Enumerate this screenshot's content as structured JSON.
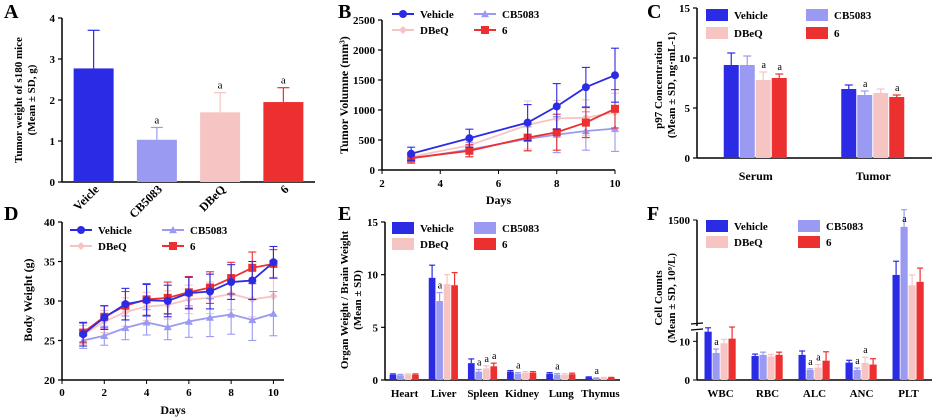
{
  "colors": {
    "vehicle": "#2b2be6",
    "cb5083": "#9a9af2",
    "dbeq": "#f7c4c4",
    "six": "#ec2f2f",
    "axis": "#000000"
  },
  "chart_data": [
    {
      "panel": "A",
      "type": "bar",
      "ylabel": "Tumor weight of s180 mice (Mean ± SD, g)",
      "xlabel": "",
      "ylim": [
        0,
        4
      ],
      "yticks": [
        0,
        1,
        2,
        3,
        4
      ],
      "categories": [
        "Veicle",
        "CB5083",
        "DBeQ",
        "6"
      ],
      "values": [
        2.77,
        1.03,
        1.7,
        1.95
      ],
      "errors": [
        0.93,
        0.3,
        0.48,
        0.35
      ],
      "annotations": [
        "",
        "a",
        "a",
        "a"
      ]
    },
    {
      "panel": "B",
      "type": "line",
      "xlabel": "Days",
      "ylabel": "Tumor Volumne (mm³)",
      "xlim": [
        2,
        10
      ],
      "ylim": [
        0,
        2500
      ],
      "xticks": [
        2,
        4,
        6,
        8,
        10
      ],
      "yticks": [
        0,
        500,
        1000,
        1500,
        2000,
        2500
      ],
      "x": [
        3,
        5,
        7,
        8,
        9,
        10
      ],
      "series": [
        {
          "name": "Vehicle",
          "values": [
            270,
            530,
            790,
            1060,
            1380,
            1580
          ],
          "errors": [
            110,
            150,
            300,
            380,
            330,
            450
          ]
        },
        {
          "name": "CB5083",
          "values": [
            190,
            340,
            520,
            590,
            650,
            690
          ],
          "errors": [
            80,
            120,
            200,
            300,
            320,
            380
          ]
        },
        {
          "name": "DBeQ",
          "values": [
            220,
            410,
            750,
            860,
            870,
            960
          ],
          "errors": [
            80,
            120,
            400,
            300,
            300,
            320
          ]
        },
        {
          "name": "6",
          "values": [
            200,
            320,
            540,
            630,
            790,
            1020
          ],
          "errors": [
            80,
            100,
            220,
            300,
            250,
            320
          ]
        }
      ]
    },
    {
      "panel": "C",
      "type": "bar",
      "ylabel": "p97 Concentration (Mean ± SD, ng·mL-1)",
      "xlabel": "",
      "ylim": [
        0,
        15
      ],
      "yticks": [
        0,
        5,
        10,
        15
      ],
      "categories": [
        "Serum",
        "Tumor"
      ],
      "series": [
        {
          "name": "Vehicle",
          "values": [
            9.3,
            6.9
          ],
          "errors": [
            1.2,
            0.4
          ]
        },
        {
          "name": "CB5083",
          "values": [
            9.3,
            6.3
          ],
          "errors": [
            0.9,
            0.4
          ]
        },
        {
          "name": "DBeQ",
          "values": [
            7.8,
            6.5
          ],
          "errors": [
            0.8,
            0.4
          ]
        },
        {
          "name": "6",
          "values": [
            8.0,
            6.1
          ],
          "errors": [
            0.4,
            0.2
          ]
        }
      ],
      "annotations": [
        [
          "",
          "",
          "a",
          "a"
        ],
        [
          "",
          "a",
          "",
          "a"
        ]
      ]
    },
    {
      "panel": "D",
      "type": "line",
      "xlabel": "Days",
      "ylabel": "Body Weight (g)",
      "xlim": [
        0,
        10.5
      ],
      "ylim": [
        20,
        40
      ],
      "xticks": [
        0,
        2,
        4,
        6,
        8,
        10
      ],
      "yticks": [
        20,
        25,
        30,
        35,
        40
      ],
      "x": [
        1,
        2,
        3,
        4,
        5,
        6,
        7,
        8,
        9,
        10
      ],
      "series": [
        {
          "name": "Vehicle",
          "values": [
            25.8,
            27.9,
            29.6,
            30.1,
            30.0,
            31.0,
            31.2,
            32.4,
            32.6,
            34.9
          ],
          "errors": [
            1.5,
            1.5,
            2.0,
            2.0,
            2.0,
            2.0,
            2.2,
            2.2,
            2.4,
            2.0
          ]
        },
        {
          "name": "CB5083",
          "values": [
            25.0,
            25.6,
            26.6,
            27.3,
            26.7,
            27.4,
            27.9,
            28.3,
            27.6,
            28.4
          ],
          "errors": [
            1.0,
            1.2,
            1.5,
            1.6,
            1.6,
            2.0,
            2.4,
            2.5,
            2.6,
            2.8
          ]
        },
        {
          "name": "DBeQ",
          "values": [
            25.7,
            27.4,
            28.6,
            29.3,
            29.5,
            30.2,
            30.4,
            30.9,
            30.2,
            30.6
          ],
          "errors": [
            1.2,
            1.4,
            1.8,
            1.8,
            1.8,
            1.8,
            2.0,
            2.0,
            2.2,
            2.4
          ]
        },
        {
          "name": "6",
          "values": [
            26.0,
            28.0,
            29.4,
            30.2,
            30.4,
            31.1,
            31.7,
            32.9,
            34.2,
            34.7
          ],
          "errors": [
            1.2,
            1.4,
            1.8,
            2.0,
            2.0,
            2.0,
            2.0,
            2.0,
            2.0,
            1.8
          ]
        }
      ]
    },
    {
      "panel": "E",
      "type": "bar",
      "ylabel": "Organ Weight / Brain Weight (Mean ± SD)",
      "xlabel": "",
      "ylim": [
        0,
        15
      ],
      "yticks": [
        0,
        5,
        10,
        15
      ],
      "categories": [
        "Heart",
        "Liver",
        "Spleen",
        "Kidney",
        "Lung",
        "Thymus"
      ],
      "series": [
        {
          "name": "Vehicle",
          "values": [
            0.5,
            9.7,
            1.6,
            0.8,
            0.6,
            0.25
          ],
          "errors": [
            0.08,
            1.2,
            0.4,
            0.1,
            0.1,
            0.05
          ]
        },
        {
          "name": "CB5083",
          "values": [
            0.45,
            7.5,
            0.8,
            0.6,
            0.5,
            0.15
          ],
          "errors": [
            0.08,
            0.8,
            0.2,
            0.1,
            0.1,
            0.05
          ]
        },
        {
          "name": "DBeQ",
          "values": [
            0.5,
            9.1,
            1.1,
            0.7,
            0.5,
            0.2
          ],
          "errors": [
            0.08,
            0.9,
            0.25,
            0.1,
            0.1,
            0.05
          ]
        },
        {
          "name": "6",
          "values": [
            0.5,
            9.0,
            1.3,
            0.7,
            0.55,
            0.2
          ],
          "errors": [
            0.08,
            1.2,
            0.3,
            0.1,
            0.1,
            0.05
          ]
        }
      ],
      "annotations": [
        [
          "",
          "",
          "",
          ""
        ],
        [
          "",
          "a",
          "",
          ""
        ],
        [
          "",
          "a",
          "a",
          "a"
        ],
        [
          "",
          "a",
          "",
          ""
        ],
        [
          "",
          "a",
          "",
          ""
        ],
        [
          "",
          "a",
          "",
          ""
        ]
      ]
    },
    {
      "panel": "F",
      "type": "bar",
      "ylabel": "Cell Counts (Mean ± SD, 10⁹/L)",
      "xlabel": "",
      "yticks_labels": [
        "0",
        "10",
        "1500"
      ],
      "axis_break": true,
      "categories": [
        "WBC",
        "RBC",
        "ALC",
        "ANC",
        "PLT"
      ],
      "series": [
        {
          "name": "Vehicle",
          "values": [
            12.5,
            6.2,
            6.5,
            4.5,
            700
          ],
          "errors": [
            1.0,
            0.5,
            1.0,
            0.6,
            200
          ]
        },
        {
          "name": "CB5083",
          "values": [
            7.0,
            6.5,
            2.6,
            2.6,
            1400
          ],
          "errors": [
            1.0,
            0.7,
            0.3,
            0.5,
            250
          ]
        },
        {
          "name": "DBeQ",
          "values": [
            9.5,
            6.1,
            3.2,
            4.4,
            550
          ],
          "errors": [
            1.0,
            0.5,
            0.8,
            1.5,
            150
          ]
        },
        {
          "name": "6",
          "values": [
            10.7,
            6.5,
            5.0,
            4.0,
            600
          ],
          "errors": [
            3.0,
            0.7,
            2.3,
            1.5,
            200
          ]
        }
      ],
      "annotations": [
        [
          "",
          "a",
          "",
          ""
        ],
        [
          "",
          "",
          "",
          ""
        ],
        [
          "",
          "a",
          "a",
          ""
        ],
        [
          "",
          "a",
          "a",
          ""
        ],
        [
          "",
          "",
          "",
          ""
        ]
      ],
      "top_annotation": "a"
    }
  ],
  "legend_labels": {
    "vehicle": "Vehicle",
    "cb5083": "CB5083",
    "dbeq": "DBeQ",
    "six": "6"
  }
}
